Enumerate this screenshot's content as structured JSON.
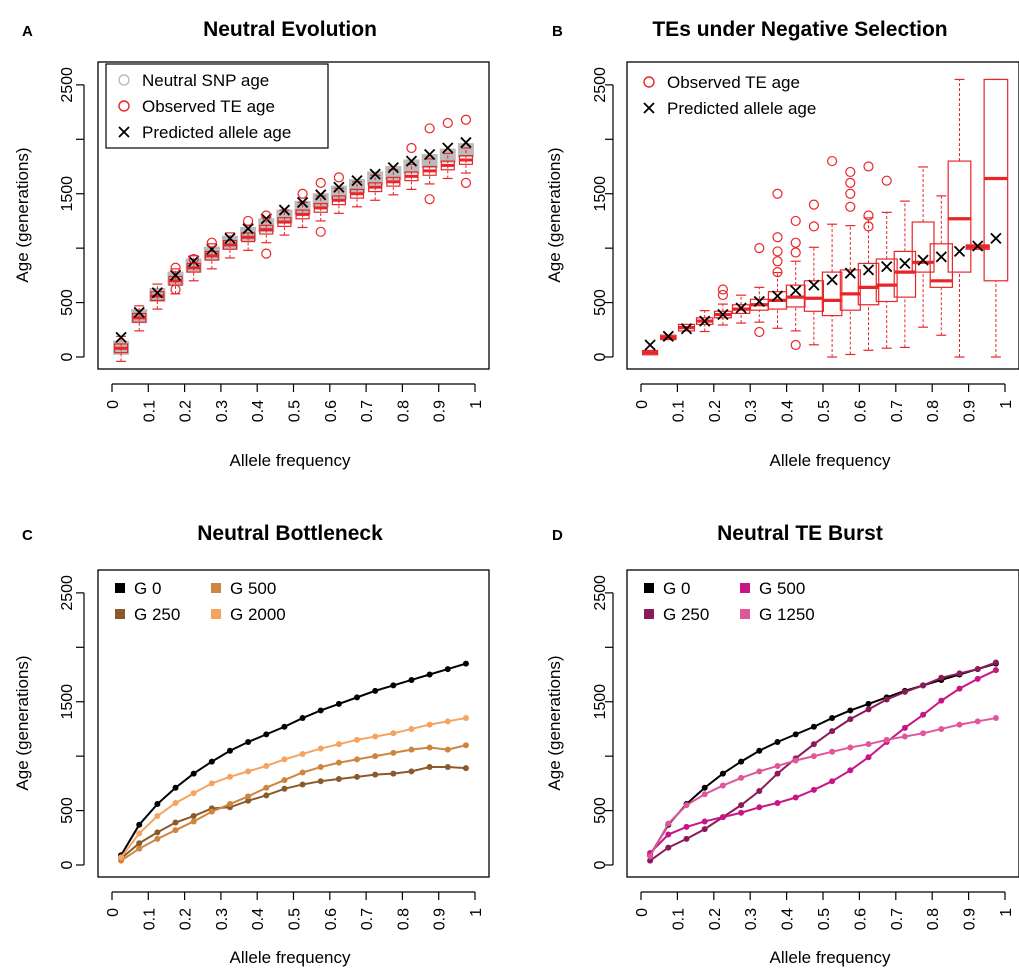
{
  "chart_data": [
    {
      "type": "box",
      "panel_label": "A",
      "title": "Neutral Evolution",
      "xlabel": "Allele frequency",
      "ylabel": "Age (generations)",
      "xlim": [
        0,
        1
      ],
      "ylim": [
        0,
        2600
      ],
      "xticks": [
        "0",
        "0.1",
        "0.2",
        "0.3",
        "0.4",
        "0.5",
        "0.6",
        "0.7",
        "0.8",
        "0.9",
        "1"
      ],
      "yticks": [
        "0",
        "500",
        "1500",
        "2500"
      ],
      "legend": [
        "Neutral SNP age",
        "Observed TE age",
        "Predicted allele age"
      ],
      "x": [
        0.025,
        0.075,
        0.125,
        0.175,
        0.225,
        0.275,
        0.325,
        0.375,
        0.425,
        0.475,
        0.525,
        0.575,
        0.625,
        0.675,
        0.725,
        0.775,
        0.825,
        0.875,
        0.925,
        0.975
      ],
      "snp_median": [
        85,
        375,
        570,
        720,
        840,
        950,
        1050,
        1130,
        1210,
        1290,
        1370,
        1440,
        1510,
        1570,
        1640,
        1690,
        1750,
        1800,
        1850,
        1900
      ],
      "te_median": [
        80,
        360,
        560,
        700,
        820,
        930,
        1030,
        1100,
        1170,
        1240,
        1310,
        1370,
        1440,
        1500,
        1560,
        1610,
        1660,
        1710,
        1760,
        1810
      ],
      "predicted": [
        180,
        410,
        590,
        750,
        880,
        990,
        1090,
        1180,
        1270,
        1350,
        1420,
        1490,
        1560,
        1620,
        1680,
        1740,
        1800,
        1860,
        1920,
        1970
      ],
      "te_outliers": [
        [
          0.175,
          620
        ],
        [
          0.175,
          820
        ],
        [
          0.225,
          900
        ],
        [
          0.275,
          1050
        ],
        [
          0.375,
          1250
        ],
        [
          0.425,
          950
        ],
        [
          0.425,
          1300
        ],
        [
          0.525,
          1500
        ],
        [
          0.575,
          1600
        ],
        [
          0.575,
          1150
        ],
        [
          0.625,
          1650
        ],
        [
          0.825,
          1920
        ],
        [
          0.875,
          1450
        ],
        [
          0.875,
          2100
        ],
        [
          0.925,
          2150
        ],
        [
          0.975,
          2180
        ],
        [
          0.975,
          1600
        ]
      ],
      "colors": {
        "snp": "#bbbbbb",
        "te": "#e8262a",
        "predicted": "#000000"
      }
    },
    {
      "type": "box",
      "panel_label": "B",
      "title": "TEs under Negative Selection",
      "xlabel": "Allele frequency",
      "ylabel": "Age (generations)",
      "xlim": [
        0,
        1
      ],
      "ylim": [
        0,
        2600
      ],
      "xticks": [
        "0",
        "0.1",
        "0.2",
        "0.3",
        "0.4",
        "0.5",
        "0.6",
        "0.7",
        "0.8",
        "0.9",
        "1"
      ],
      "yticks": [
        "0",
        "500",
        "1500",
        "2500"
      ],
      "legend": [
        "Observed TE age",
        "Predicted allele age"
      ],
      "x": [
        0.025,
        0.075,
        0.125,
        0.175,
        0.225,
        0.275,
        0.325,
        0.375,
        0.425,
        0.475,
        0.525,
        0.575,
        0.625,
        0.675,
        0.725,
        0.775,
        0.825,
        0.875,
        0.925,
        0.975
      ],
      "te_median": [
        40,
        180,
        270,
        330,
        390,
        440,
        480,
        520,
        550,
        540,
        520,
        580,
        640,
        660,
        780,
        870,
        700,
        1270,
        1010,
        1640
      ],
      "te_q1": [
        20,
        160,
        240,
        300,
        360,
        400,
        430,
        440,
        460,
        420,
        380,
        430,
        480,
        510,
        550,
        780,
        640,
        780,
        990,
        700
      ],
      "te_q3": [
        60,
        200,
        300,
        360,
        420,
        480,
        530,
        600,
        660,
        700,
        780,
        800,
        860,
        900,
        970,
        1240,
        1040,
        1800,
        1030,
        2550
      ],
      "predicted": [
        110,
        190,
        260,
        330,
        390,
        450,
        510,
        560,
        610,
        660,
        710,
        770,
        800,
        830,
        860,
        890,
        920,
        970,
        1020,
        1090
      ],
      "te_outliers": [
        [
          0.225,
          570
        ],
        [
          0.225,
          620
        ],
        [
          0.325,
          230
        ],
        [
          0.325,
          1000
        ],
        [
          0.375,
          780
        ],
        [
          0.375,
          880
        ],
        [
          0.375,
          970
        ],
        [
          0.375,
          1100
        ],
        [
          0.375,
          1500
        ],
        [
          0.425,
          110
        ],
        [
          0.425,
          960
        ],
        [
          0.425,
          1050
        ],
        [
          0.425,
          1250
        ],
        [
          0.475,
          1400
        ],
        [
          0.475,
          1200
        ],
        [
          0.525,
          1800
        ],
        [
          0.575,
          1700
        ],
        [
          0.575,
          1600
        ],
        [
          0.575,
          1500
        ],
        [
          0.575,
          1380
        ],
        [
          0.625,
          1750
        ],
        [
          0.625,
          1300
        ],
        [
          0.625,
          1200
        ],
        [
          0.675,
          1620
        ]
      ],
      "colors": {
        "te": "#e8262a",
        "predicted": "#000000"
      }
    },
    {
      "type": "line",
      "panel_label": "C",
      "title": "Neutral Bottleneck",
      "xlabel": "Allele frequency",
      "ylabel": "Age (generations)",
      "xlim": [
        0,
        1
      ],
      "ylim": [
        0,
        2600
      ],
      "xticks": [
        "0",
        "0.1",
        "0.2",
        "0.3",
        "0.4",
        "0.5",
        "0.6",
        "0.7",
        "0.8",
        "0.9",
        "1"
      ],
      "yticks": [
        "0",
        "500",
        "1500",
        "2500"
      ],
      "x": [
        0.025,
        0.075,
        0.125,
        0.175,
        0.225,
        0.275,
        0.325,
        0.375,
        0.425,
        0.475,
        0.525,
        0.575,
        0.625,
        0.675,
        0.725,
        0.775,
        0.825,
        0.875,
        0.925,
        0.975
      ],
      "series": [
        {
          "name": "G 0",
          "color": "#000000",
          "values": [
            90,
            370,
            560,
            710,
            840,
            950,
            1050,
            1130,
            1200,
            1270,
            1350,
            1420,
            1480,
            1540,
            1600,
            1650,
            1700,
            1750,
            1800,
            1850
          ]
        },
        {
          "name": "G 250",
          "color": "#8b5a2b",
          "values": [
            60,
            200,
            300,
            390,
            450,
            520,
            530,
            590,
            640,
            700,
            740,
            770,
            790,
            810,
            830,
            840,
            860,
            900,
            900,
            890
          ]
        },
        {
          "name": "G 500",
          "color": "#cd853f",
          "values": [
            40,
            150,
            240,
            320,
            400,
            490,
            560,
            630,
            710,
            780,
            850,
            900,
            940,
            970,
            1000,
            1030,
            1060,
            1080,
            1060,
            1100
          ]
        },
        {
          "name": "G 2000",
          "color": "#f4a460",
          "values": [
            70,
            290,
            450,
            570,
            660,
            750,
            810,
            860,
            910,
            970,
            1020,
            1070,
            1110,
            1150,
            1180,
            1210,
            1250,
            1290,
            1320,
            1350
          ]
        }
      ]
    },
    {
      "type": "line",
      "panel_label": "D",
      "title": "Neutral TE Burst",
      "xlabel": "Allele frequency",
      "ylabel": "Age (generations)",
      "xlim": [
        0,
        1
      ],
      "ylim": [
        0,
        2600
      ],
      "xticks": [
        "0",
        "0.1",
        "0.2",
        "0.3",
        "0.4",
        "0.5",
        "0.6",
        "0.7",
        "0.8",
        "0.9",
        "1"
      ],
      "yticks": [
        "0",
        "500",
        "1500",
        "2500"
      ],
      "x": [
        0.025,
        0.075,
        0.125,
        0.175,
        0.225,
        0.275,
        0.325,
        0.375,
        0.425,
        0.475,
        0.525,
        0.575,
        0.625,
        0.675,
        0.725,
        0.775,
        0.825,
        0.875,
        0.925,
        0.975
      ],
      "series": [
        {
          "name": "G 0",
          "color": "#000000",
          "values": [
            90,
            370,
            560,
            710,
            840,
            950,
            1050,
            1130,
            1200,
            1270,
            1350,
            1420,
            1480,
            1540,
            1600,
            1650,
            1700,
            1750,
            1800,
            1850
          ]
        },
        {
          "name": "G 250",
          "color": "#8b1a5a",
          "values": [
            40,
            160,
            240,
            330,
            440,
            550,
            680,
            840,
            980,
            1110,
            1230,
            1340,
            1430,
            1520,
            1590,
            1650,
            1720,
            1760,
            1800,
            1860
          ]
        },
        {
          "name": "G 500",
          "color": "#c71585",
          "values": [
            110,
            280,
            350,
            400,
            440,
            480,
            530,
            570,
            620,
            690,
            770,
            870,
            990,
            1130,
            1260,
            1380,
            1510,
            1620,
            1710,
            1790
          ]
        },
        {
          "name": "G 1250",
          "color": "#e0569a",
          "values": [
            80,
            380,
            550,
            650,
            730,
            800,
            860,
            910,
            960,
            1000,
            1040,
            1080,
            1110,
            1150,
            1180,
            1210,
            1250,
            1290,
            1320,
            1350
          ]
        }
      ]
    }
  ]
}
